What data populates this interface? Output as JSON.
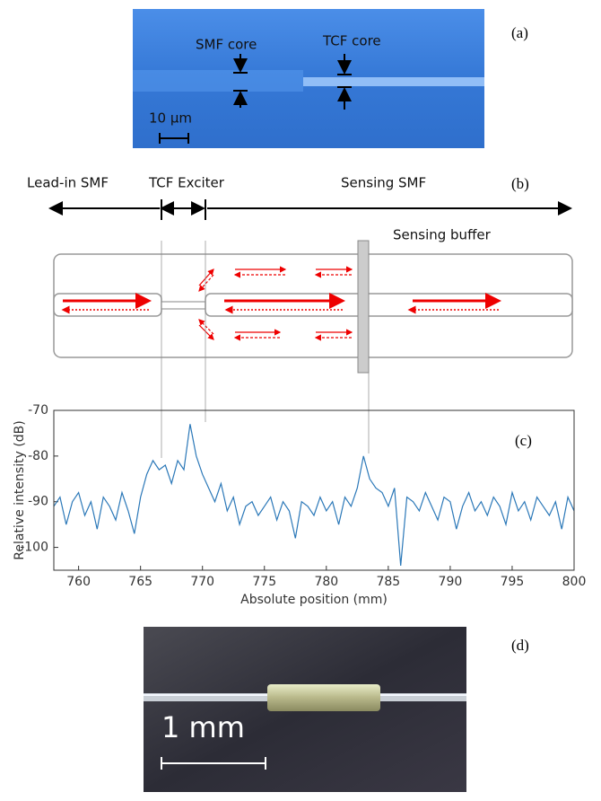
{
  "panel_a": {
    "label": "(a)",
    "smf_core": "SMF core",
    "tcf_core": "TCF core",
    "scale": "10 μm"
  },
  "panel_b": {
    "label": "(b)",
    "lead_in": "Lead-in SMF",
    "exciter": "TCF Exciter",
    "sensing": "Sensing SMF",
    "buffer": "Sensing buffer"
  },
  "chart_data": {
    "type": "line",
    "label": "(c)",
    "xlabel": "Absolute position (mm)",
    "ylabel": "Relative intensity (dB)",
    "color": "#2b78b8",
    "x": [
      758,
      758.5,
      759,
      759.5,
      760,
      760.5,
      761,
      761.5,
      762,
      762.5,
      763,
      763.5,
      764,
      764.5,
      765,
      765.5,
      766,
      766.5,
      767,
      767.5,
      768,
      768.5,
      769,
      769.5,
      770,
      770.5,
      771,
      771.5,
      772,
      772.5,
      773,
      773.5,
      774,
      774.5,
      775,
      775.5,
      776,
      776.5,
      777,
      777.5,
      778,
      778.5,
      779,
      779.5,
      780,
      780.5,
      781,
      781.5,
      782,
      782.5,
      783,
      783.5,
      784,
      784.5,
      785,
      785.5,
      786,
      786.5,
      787,
      787.5,
      788,
      788.5,
      789,
      789.5,
      790,
      790.5,
      791,
      791.5,
      792,
      792.5,
      793,
      793.5,
      794,
      794.5,
      795,
      795.5,
      796,
      796.5,
      797,
      797.5,
      798,
      798.5,
      799,
      799.5,
      800
    ],
    "values": [
      -91,
      -89,
      -95,
      -90,
      -88,
      -93,
      -90,
      -96,
      -89,
      -91,
      -94,
      -88,
      -92,
      -97,
      -89,
      -84,
      -81,
      -83,
      -82,
      -86,
      -81,
      -83,
      -73,
      -80,
      -84,
      -87,
      -90,
      -86,
      -92,
      -89,
      -95,
      -91,
      -90,
      -93,
      -91,
      -89,
      -94,
      -90,
      -92,
      -98,
      -90,
      -91,
      -93,
      -89,
      -92,
      -90,
      -95,
      -89,
      -91,
      -87,
      -80,
      -85,
      -87,
      -88,
      -91,
      -87,
      -104,
      -89,
      -90,
      -92,
      -88,
      -91,
      -94,
      -89,
      -90,
      -96,
      -91,
      -88,
      -92,
      -90,
      -93,
      -89,
      -91,
      -95,
      -88,
      -92,
      -90,
      -94,
      -89,
      -91,
      -93,
      -90,
      -96,
      -89,
      -92
    ],
    "xlim": [
      758,
      800
    ],
    "ylim": [
      -105,
      -70
    ],
    "xticks": [
      760,
      765,
      770,
      775,
      780,
      785,
      790,
      795,
      800
    ],
    "yticks": [
      -100,
      -90,
      -80,
      -70
    ],
    "grid": false
  },
  "panel_d": {
    "label": "(d)",
    "scale": "1 mm"
  }
}
